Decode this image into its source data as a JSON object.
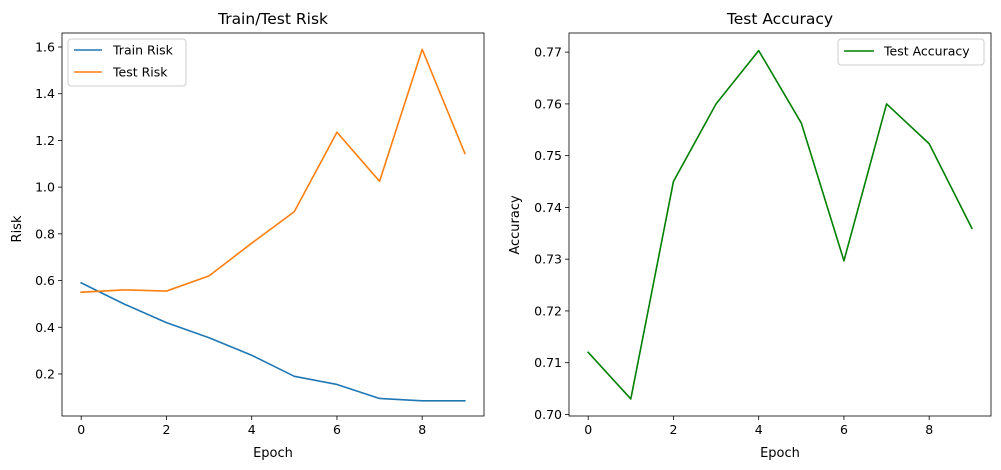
{
  "chart_data": [
    {
      "type": "line",
      "title": "Train/Test Risk",
      "xlabel": "Epoch",
      "ylabel": "Risk",
      "x": [
        0,
        1,
        2,
        3,
        4,
        5,
        6,
        7,
        8,
        9
      ],
      "xlim": [
        -0.45,
        9.45
      ],
      "ylim": [
        0.02,
        1.66
      ],
      "xticks": [
        0,
        2,
        4,
        6,
        8
      ],
      "yticks": [
        0.2,
        0.4,
        0.6,
        0.8,
        1.0,
        1.2,
        1.4,
        1.6
      ],
      "ytick_labels": [
        "0.2",
        "0.4",
        "0.6",
        "0.8",
        "1.0",
        "1.2",
        "1.4",
        "1.6"
      ],
      "legend": "top-left",
      "grid": false,
      "series": [
        {
          "name": "Train Risk",
          "color": "#1f77b4",
          "values": [
            0.59,
            0.5,
            0.42,
            0.355,
            0.28,
            0.19,
            0.155,
            0.095,
            0.085,
            0.085
          ]
        },
        {
          "name": "Test Risk",
          "color": "#ff7f0e",
          "values": [
            0.55,
            0.56,
            0.555,
            0.62,
            0.76,
            0.895,
            1.235,
            1.025,
            1.59,
            1.145
          ]
        }
      ]
    },
    {
      "type": "line",
      "title": "Test Accuracy",
      "xlabel": "Epoch",
      "ylabel": "Accuracy",
      "x": [
        0,
        1,
        2,
        3,
        4,
        5,
        6,
        7,
        8,
        9
      ],
      "xlim": [
        -0.45,
        9.45
      ],
      "ylim": [
        0.6997,
        0.7737
      ],
      "xticks": [
        0,
        2,
        4,
        6,
        8
      ],
      "yticks": [
        0.7,
        0.71,
        0.72,
        0.73,
        0.74,
        0.75,
        0.76,
        0.77
      ],
      "ytick_labels": [
        "0.70",
        "0.71",
        "0.72",
        "0.73",
        "0.74",
        "0.75",
        "0.76",
        "0.77"
      ],
      "legend": "top-right",
      "grid": false,
      "series": [
        {
          "name": "Test Accuracy",
          "color": "#008000",
          "values": [
            0.712,
            0.703,
            0.745,
            0.76,
            0.7703,
            0.7563,
            0.7297,
            0.76,
            0.7523,
            0.736
          ]
        }
      ]
    }
  ]
}
